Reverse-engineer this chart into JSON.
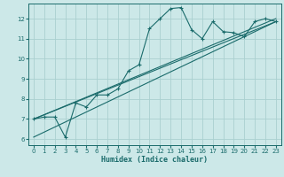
{
  "xlabel": "Humidex (Indice chaleur)",
  "xlim": [
    -0.5,
    23.5
  ],
  "ylim": [
    5.7,
    12.75
  ],
  "xticks": [
    0,
    1,
    2,
    3,
    4,
    5,
    6,
    7,
    8,
    9,
    10,
    11,
    12,
    13,
    14,
    15,
    16,
    17,
    18,
    19,
    20,
    21,
    22,
    23
  ],
  "yticks": [
    6,
    7,
    8,
    9,
    10,
    11,
    12
  ],
  "bg_color": "#cce8e8",
  "line_color": "#1a6b6b",
  "grid_color": "#aad0d0",
  "curve_x": [
    0,
    1,
    2,
    3,
    4,
    5,
    6,
    7,
    8,
    9,
    10,
    11,
    12,
    13,
    14,
    15,
    16,
    17,
    18,
    19,
    20,
    21,
    22,
    23
  ],
  "curve_y": [
    7.0,
    7.1,
    7.1,
    6.1,
    7.8,
    7.6,
    8.2,
    8.2,
    8.5,
    9.4,
    9.7,
    11.5,
    12.0,
    12.5,
    12.55,
    11.45,
    11.0,
    11.85,
    11.35,
    11.3,
    11.1,
    11.85,
    12.0,
    11.85
  ],
  "line1_x": [
    0,
    23
  ],
  "line1_y": [
    7.0,
    11.85
  ],
  "line2_x": [
    0,
    23
  ],
  "line2_y": [
    6.1,
    11.85
  ],
  "line3_x": [
    0,
    23
  ],
  "line3_y": [
    7.0,
    12.0
  ],
  "tick_fontsize": 5.0,
  "xlabel_fontsize": 6.0
}
